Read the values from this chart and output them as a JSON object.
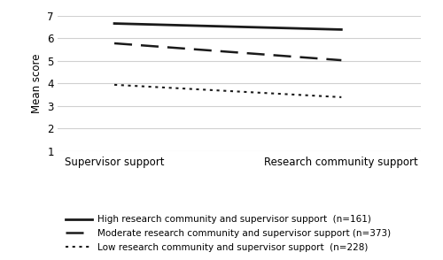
{
  "x_labels": [
    "Supervisor support",
    "Research community support"
  ],
  "x_positions": [
    0,
    1
  ],
  "high_values": [
    6.65,
    6.38
  ],
  "moderate_values": [
    5.77,
    5.02
  ],
  "low_values": [
    3.93,
    3.38
  ],
  "high_label": "High research community and supervisor support  (n=161)",
  "moderate_label": "Moderate research community and supervisor support (n=373)",
  "low_label": "Low research community and supervisor support  (n=228)",
  "ylabel": "Mean score",
  "ylim": [
    1,
    7
  ],
  "yticks": [
    1,
    2,
    3,
    4,
    5,
    6,
    7
  ],
  "line_color": "#1a1a1a",
  "background_color": "#ffffff",
  "grid_color": "#d0d0d0"
}
